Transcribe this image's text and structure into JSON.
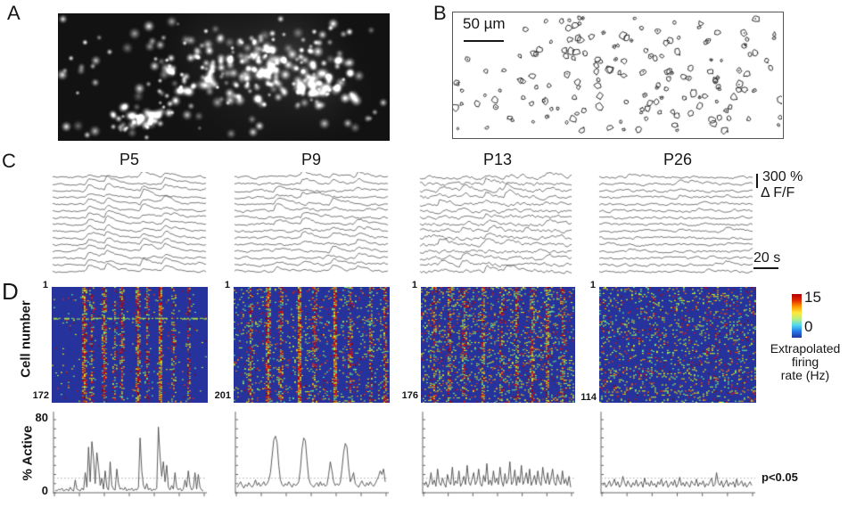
{
  "labels": {
    "a": "A",
    "b": "B",
    "c": "C",
    "d": "D",
    "scalebar_b": "50 µm",
    "ages": [
      "P5",
      "P9",
      "P13",
      "P26"
    ],
    "amp_scale": "300 %",
    "amp_scale_unit": "Δ F/F",
    "time_scale": "20 s",
    "cell_number_axis": "Cell number",
    "raster_top": "1",
    "raster_counts": [
      "172",
      "201",
      "176",
      "114"
    ],
    "cbar_max": "15",
    "cbar_min": "0",
    "cbar_caption": [
      "Extrapolated",
      "firing",
      "rate (Hz)"
    ],
    "pct_active_axis": "% Active",
    "pct_max": "80",
    "pct_min": "0",
    "sig": "p<0.05"
  },
  "colors": {
    "raster_bg": "#26339c",
    "jet_stops_bottom_to_top": [
      "#26339c",
      "#2878e8",
      "#50d8f0",
      "#b8f080",
      "#ffe83c",
      "#ff9800",
      "#e02800",
      "#b00000"
    ],
    "trace": "#404040",
    "active_line": "#4a4a4a",
    "threshold_line": "#aaaaaa",
    "axis": "#666666"
  },
  "chart_data": [
    {
      "type": "line",
      "name": "percent_active",
      "ylabel": "% Active",
      "ylim": [
        0,
        80
      ],
      "threshold": 16,
      "threshold_label": "p<0.05",
      "series": [
        {
          "name": "P5",
          "values": [
            3,
            2,
            4,
            3,
            5,
            2,
            3,
            4,
            2,
            6,
            3,
            2,
            14,
            4,
            3,
            2,
            5,
            3,
            22,
            6,
            50,
            12,
            56,
            38,
            10,
            44,
            28,
            8,
            16,
            4,
            24,
            6,
            3,
            34,
            8,
            4,
            3,
            26,
            10,
            4,
            5,
            3,
            6,
            2,
            4,
            3,
            5,
            2,
            4,
            3,
            6,
            60,
            24,
            8,
            4,
            10,
            3,
            5,
            2,
            4,
            3,
            5,
            72,
            40,
            18,
            34,
            12,
            30,
            6,
            3,
            8,
            4,
            22,
            6,
            3,
            5,
            2,
            4,
            14,
            6,
            24,
            8,
            3,
            5,
            22,
            4,
            20,
            6,
            3,
            2
          ]
        },
        {
          "name": "P9",
          "values": [
            6,
            9,
            12,
            8,
            5,
            9,
            7,
            11,
            8,
            6,
            9,
            14,
            8,
            11,
            7,
            9,
            12,
            8,
            10,
            14,
            22,
            40,
            58,
            62,
            55,
            30,
            14,
            9,
            7,
            10,
            8,
            12,
            9,
            6,
            10,
            8,
            9,
            12,
            26,
            48,
            60,
            57,
            35,
            16,
            10,
            8,
            6,
            9,
            11,
            7,
            12,
            8,
            10,
            7,
            9,
            20,
            34,
            24,
            12,
            8,
            10,
            8,
            11,
            26,
            44,
            54,
            50,
            28,
            12,
            16,
            22,
            10,
            8,
            6,
            10,
            13,
            9,
            7,
            11,
            8,
            12,
            9,
            7,
            10,
            14,
            18,
            24,
            20,
            26,
            12
          ]
        },
        {
          "name": "P13",
          "values": [
            8,
            12,
            6,
            10,
            22,
            9,
            14,
            7,
            26,
            11,
            8,
            16,
            10,
            6,
            20,
            12,
            9,
            28,
            8,
            13,
            10,
            24,
            7,
            11,
            18,
            9,
            30,
            12,
            8,
            15,
            22,
            9,
            13,
            26,
            10,
            7,
            19,
            12,
            32,
            9,
            14,
            8,
            24,
            11,
            16,
            9,
            28,
            13,
            7,
            21,
            10,
            15,
            34,
            9,
            12,
            25,
            8,
            18,
            11,
            30,
            9,
            14,
            22,
            10,
            26,
            8,
            13,
            19,
            9,
            24,
            12,
            8,
            28,
            15,
            10,
            22,
            9,
            16,
            26,
            11,
            8,
            20,
            13,
            9,
            24,
            10,
            15,
            8,
            18,
            6
          ]
        },
        {
          "name": "P26",
          "values": [
            8,
            11,
            6,
            9,
            13,
            7,
            10,
            15,
            8,
            12,
            6,
            9,
            18,
            11,
            7,
            13,
            9,
            6,
            11,
            8,
            14,
            7,
            10,
            12,
            6,
            16,
            9,
            11,
            7,
            13,
            8,
            10,
            6,
            12,
            9,
            15,
            7,
            11,
            13,
            6,
            9,
            12,
            8,
            14,
            6,
            10,
            17,
            8,
            11,
            7,
            12,
            9,
            6,
            13,
            10,
            8,
            15,
            7,
            11,
            9,
            13,
            6,
            10,
            8,
            12,
            16,
            7,
            9,
            22,
            11,
            8,
            13,
            6,
            10,
            14,
            7,
            11,
            9,
            12,
            6,
            15,
            8,
            10,
            13,
            7,
            11,
            6,
            9,
            12,
            8
          ]
        }
      ]
    },
    {
      "type": "heatmap",
      "name": "extrapolated_firing_rate_rasters",
      "ylabel": "Cell number",
      "colorbar": {
        "min": 0,
        "max": 15,
        "label": "Extrapolated firing rate (Hz)"
      },
      "panels": [
        {
          "name": "P5",
          "rows": 172,
          "background_density": 0.012,
          "hot_rows": [
            0.27
          ],
          "stripes": [
            {
              "x": 0.205,
              "s": 0.95
            },
            {
              "x": 0.25,
              "s": 0.45
            },
            {
              "x": 0.33,
              "s": 0.8
            },
            {
              "x": 0.405,
              "s": 0.3
            },
            {
              "x": 0.45,
              "s": 0.55
            },
            {
              "x": 0.555,
              "s": 0.9
            },
            {
              "x": 0.61,
              "s": 0.35
            },
            {
              "x": 0.695,
              "s": 0.85
            },
            {
              "x": 0.78,
              "s": 0.4
            },
            {
              "x": 0.88,
              "s": 0.3
            }
          ]
        },
        {
          "name": "P9",
          "rows": 201,
          "background_density": 0.05,
          "hot_rows": [],
          "stripes": [
            {
              "x": 0.1,
              "s": 0.3
            },
            {
              "x": 0.22,
              "s": 0.9
            },
            {
              "x": 0.3,
              "s": 0.45
            },
            {
              "x": 0.42,
              "s": 0.95
            },
            {
              "x": 0.52,
              "s": 0.4
            },
            {
              "x": 0.65,
              "s": 0.85
            },
            {
              "x": 0.75,
              "s": 0.35
            },
            {
              "x": 0.88,
              "s": 0.3
            },
            {
              "x": 0.97,
              "s": 0.45
            }
          ]
        },
        {
          "name": "P13",
          "rows": 176,
          "background_density": 0.09,
          "hot_rows": [],
          "stripes": [
            {
              "x": 0.08,
              "s": 0.35
            },
            {
              "x": 0.18,
              "s": 0.45
            },
            {
              "x": 0.28,
              "s": 0.4
            },
            {
              "x": 0.4,
              "s": 0.5
            },
            {
              "x": 0.52,
              "s": 0.35
            },
            {
              "x": 0.62,
              "s": 0.45
            },
            {
              "x": 0.72,
              "s": 0.5
            },
            {
              "x": 0.82,
              "s": 0.4
            },
            {
              "x": 0.92,
              "s": 0.35
            }
          ]
        },
        {
          "name": "P26",
          "rows": 114,
          "background_density": 0.13,
          "hot_rows": [],
          "stripes": []
        }
      ]
    },
    {
      "type": "line",
      "name": "calcium_traces",
      "scale_bar": {
        "amplitude": "300 % ΔF/F",
        "time": "20 s"
      },
      "panels": [
        {
          "name": "P5",
          "n_traces": 15,
          "events": [
            0.22,
            0.34,
            0.57,
            0.71
          ],
          "participation": 0.92,
          "amplitude": 9,
          "noise": 0.8
        },
        {
          "name": "P9",
          "n_traces": 15,
          "events": [
            0.26,
            0.43,
            0.62,
            0.78
          ],
          "participation": 0.6,
          "amplitude": 8,
          "noise": 1.0
        },
        {
          "name": "P13",
          "n_traces": 15,
          "events": [
            0.12,
            0.27,
            0.42,
            0.55,
            0.68,
            0.82
          ],
          "participation": 0.45,
          "amplitude": 7,
          "noise": 1.5
        },
        {
          "name": "P26",
          "n_traces": 15,
          "events": [
            0.18,
            0.5,
            0.8
          ],
          "participation": 0.12,
          "amplitude": 4,
          "noise": 1.0
        }
      ]
    },
    {
      "type": "scatter",
      "name": "panel_a_fluorescence_cells",
      "description": "Grayscale fluorescence image of labeled neurons; bright somata denser right of center with a small cluster at bottom-left",
      "clusters": [
        {
          "cx": 0.62,
          "cy": 0.42,
          "sx": 0.2,
          "sy": 0.28,
          "n": 150
        },
        {
          "cx": 0.8,
          "cy": 0.55,
          "sx": 0.1,
          "sy": 0.22,
          "n": 60
        },
        {
          "cx": 0.24,
          "cy": 0.85,
          "sx": 0.07,
          "sy": 0.1,
          "n": 40
        },
        {
          "cx": 0.38,
          "cy": 0.5,
          "sx": 0.12,
          "sy": 0.25,
          "n": 55
        }
      ],
      "scattered_n": 90
    },
    {
      "type": "scatter",
      "name": "panel_b_cell_contours",
      "description": "Hand-drawn style outlines of detected cell bodies",
      "n_cells": 240,
      "scale_bar": "50 µm"
    }
  ]
}
